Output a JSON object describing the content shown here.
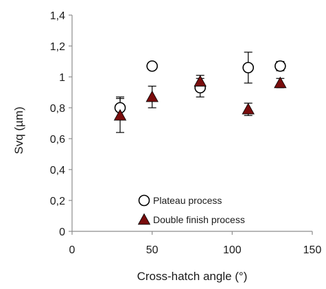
{
  "chart_data": {
    "type": "scatter",
    "xlabel": "Cross-hatch angle (°)",
    "ylabel": "Svq (µm)",
    "xlim": [
      0,
      150
    ],
    "ylim": [
      0,
      1.4
    ],
    "x_ticks": [
      0,
      50,
      100,
      150
    ],
    "y_ticks": [
      0,
      0.2,
      0.4,
      0.6,
      0.8,
      1.0,
      1.2,
      1.4
    ],
    "x_tick_labels": [
      "0",
      "50",
      "100",
      "150"
    ],
    "y_tick_labels": [
      "0",
      "0,2",
      "0,4",
      "0,6",
      "0,8",
      "1",
      "1,2",
      "1,4"
    ],
    "grid": false,
    "legend_position": "bottom-center",
    "series": [
      {
        "name": "Plateau process",
        "marker": "circle-open",
        "color": "#000000",
        "x": [
          30,
          50,
          80,
          110,
          130
        ],
        "y": [
          0.8,
          1.07,
          0.93,
          1.06,
          1.07
        ],
        "error": [
          0.07,
          0.02,
          0.06,
          0.1,
          0.03
        ]
      },
      {
        "name": "Double finish process",
        "marker": "triangle-filled",
        "color": "#7a0d0d",
        "x": [
          30,
          50,
          80,
          110,
          130
        ],
        "y": [
          0.75,
          0.87,
          0.97,
          0.79,
          0.96
        ],
        "error": [
          0.11,
          0.07,
          0.04,
          0.04,
          0.03
        ]
      }
    ]
  }
}
